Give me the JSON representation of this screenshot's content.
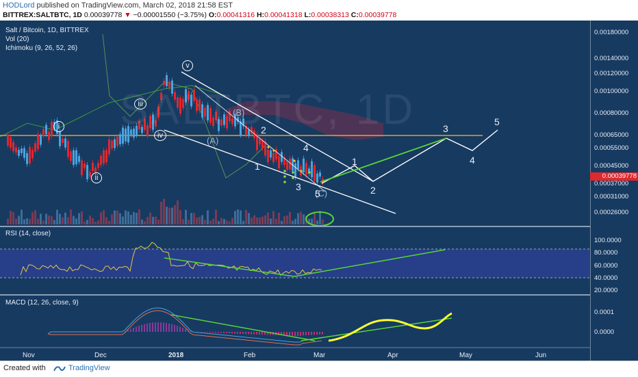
{
  "header": {
    "author": "HODLord",
    "published": "published on TradingView.com, March 02, 2018 21:58 EST",
    "symbol": "BITTREX:SALTBTC, 1D",
    "last": "0.00039778",
    "arrow": "▼",
    "change": "−0.00001550 (−3.75%)",
    "o_label": "O:",
    "o_value": "0.00041316",
    "h_label": "H:",
    "h_value": "0.00041318",
    "l_label": "L:",
    "l_value": "0.00038313",
    "c_label": "C:",
    "c_value": "0.00039778"
  },
  "main_pane": {
    "title": "Salt / Bitcoin, 1D, BITTREX",
    "vol": "Vol (20)",
    "ichimoku": "Ichimoku (9, 26, 52, 26)",
    "watermark": "SALTBTC, 1D",
    "price_tag": "0.00039778",
    "y_ticks": [
      "0.00180000",
      "0.00140000",
      "0.00120000",
      "0.00100000",
      "0.00080000",
      "0.00065000",
      "0.00055000",
      "0.00045000",
      "0.00037000",
      "0.00031000",
      "0.00026000"
    ],
    "wave_labels": {
      "i": "i",
      "ii": "ii",
      "iii": "iii",
      "iv": "iv",
      "v": "v",
      "A": "(A)",
      "B": "(B)",
      "C": "(C)",
      "w1": "1",
      "w2": "2",
      "w3": "3",
      "w4": "4",
      "w5": "5",
      "p1": "1",
      "p2": "2",
      "p3": "3",
      "p4": "4",
      "p5": "5"
    }
  },
  "rsi_pane": {
    "title": "RSI (14, close)",
    "y_ticks": [
      "100.0000",
      "80.0000",
      "60.0000",
      "40.0000",
      "20.0000"
    ]
  },
  "macd_pane": {
    "title": "MACD (12, 26, close, 9)",
    "y_ticks": [
      "0.0001",
      "0.0000"
    ]
  },
  "x_axis": [
    "Nov",
    "Dec",
    "2018",
    "Feb",
    "Mar",
    "Apr",
    "May",
    "Jun"
  ],
  "footer": {
    "created": "Created with",
    "brand": "TradingView"
  },
  "colors": {
    "background": "#173a61",
    "up": "#4aa3df",
    "down": "#e0282e",
    "wave_lines": "#ffffff",
    "trend_green": "#58d636",
    "resistance": "#f0a020",
    "macd_yellow": "#ffff30"
  }
}
